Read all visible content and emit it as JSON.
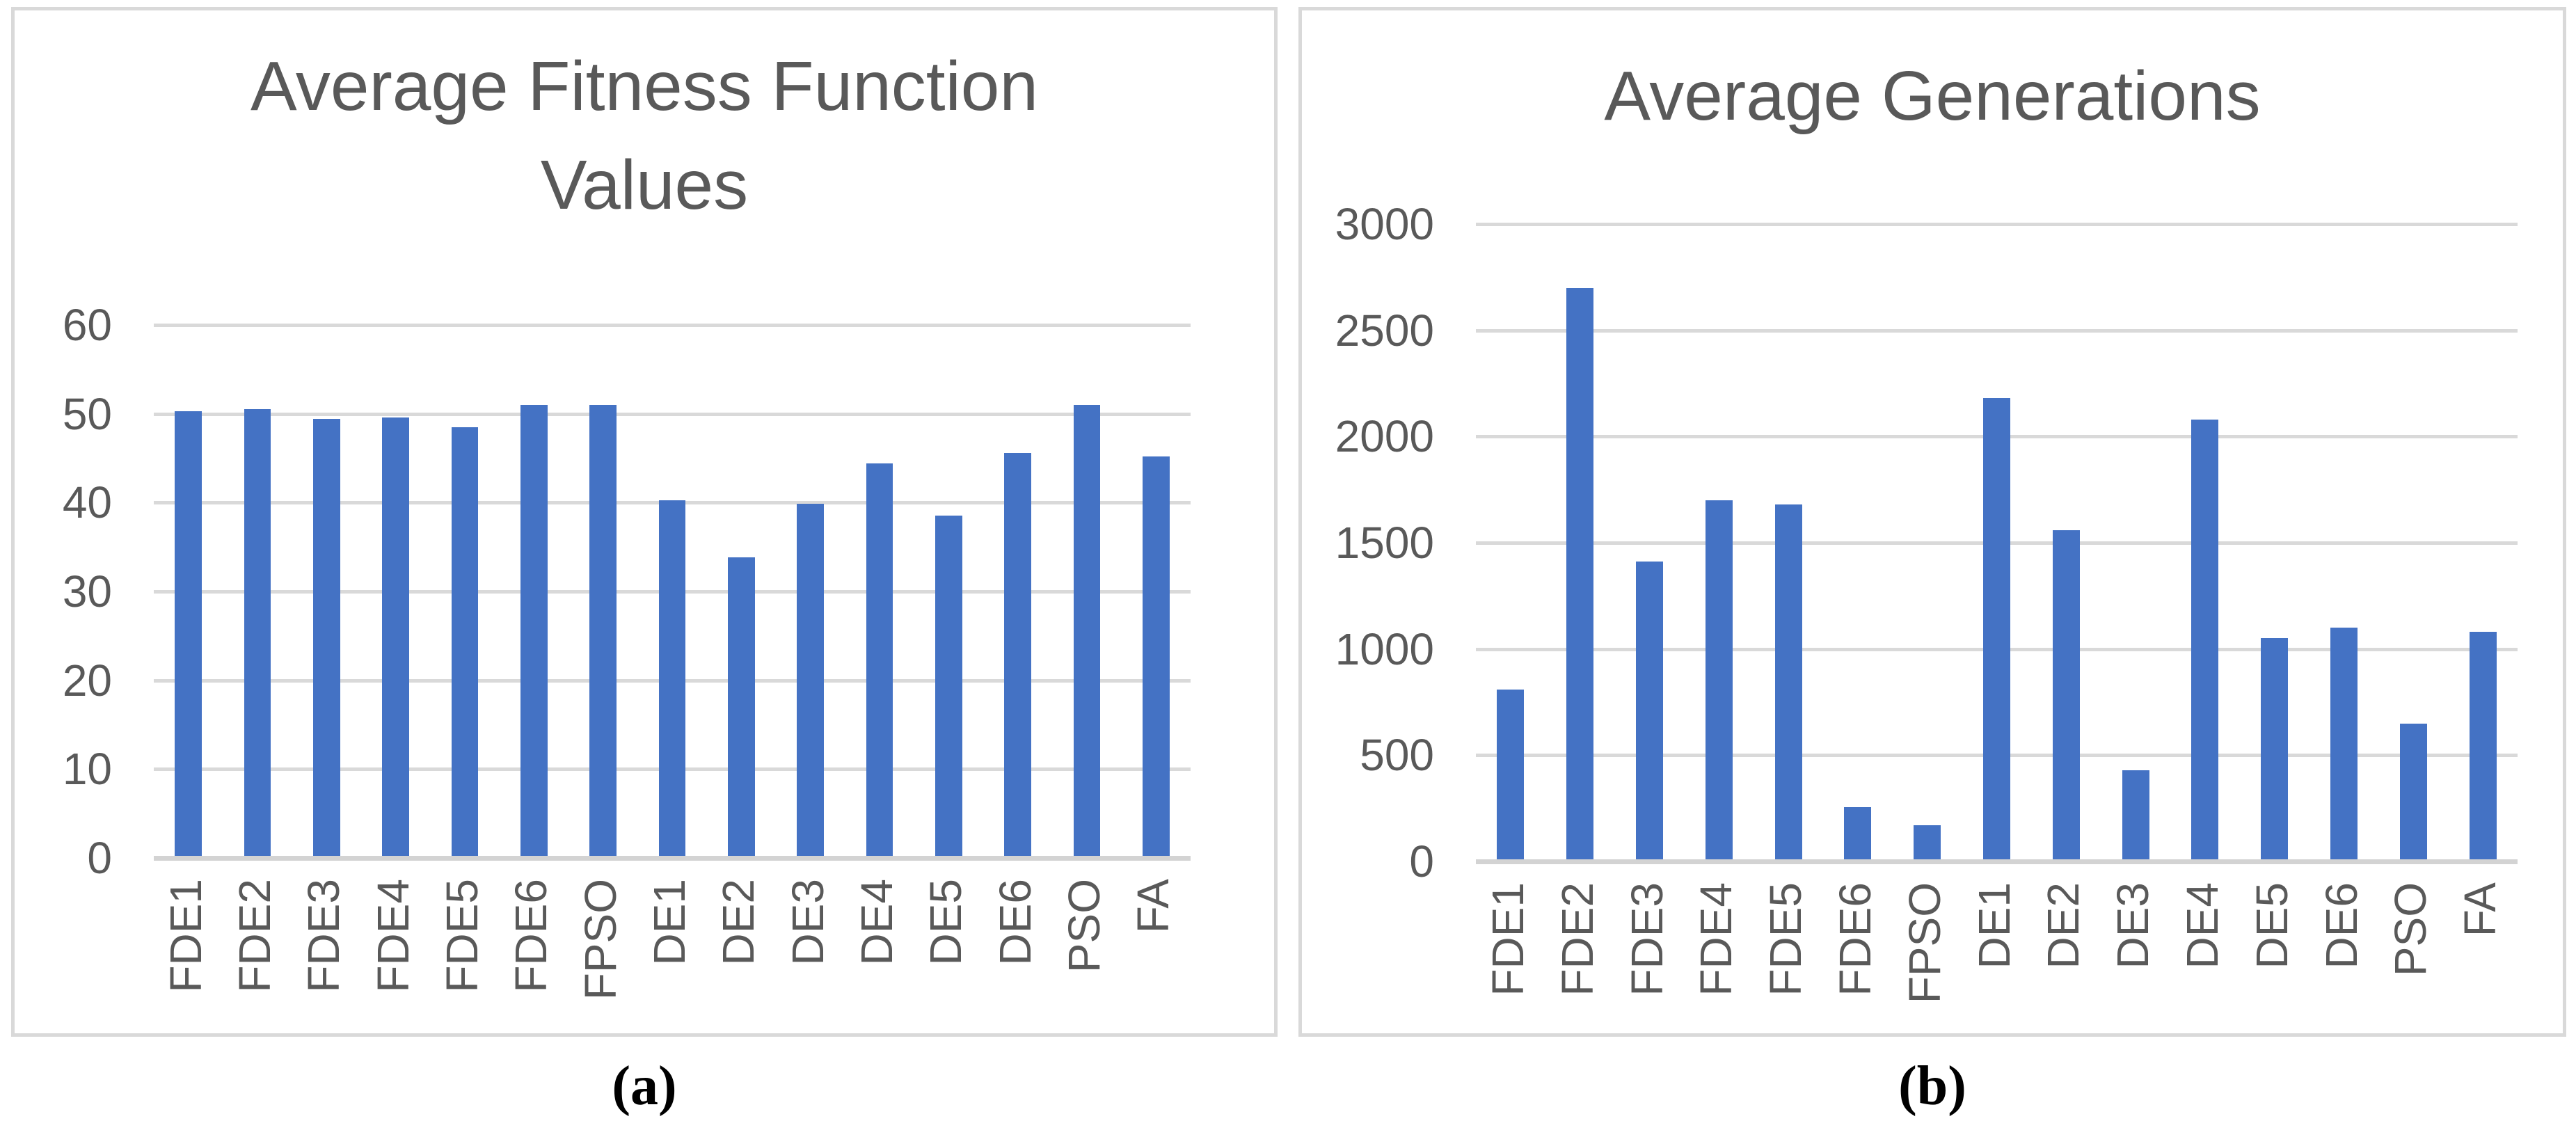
{
  "chart_data": [
    {
      "type": "bar",
      "panel": "a",
      "title": "Average Fitness Function Values",
      "caption": "(a)",
      "categories": [
        "FDE1",
        "FDE2",
        "FDE3",
        "FDE4",
        "FDE5",
        "FDE6",
        "FPSO",
        "DE1",
        "DE2",
        "DE3",
        "DE4",
        "DE5",
        "DE6",
        "PSO",
        "FA"
      ],
      "values": [
        50.3,
        50.5,
        49.4,
        49.6,
        48.5,
        51,
        51,
        40.3,
        33.8,
        39.9,
        44.4,
        38.5,
        45.6,
        51,
        45.2
      ],
      "title_lines": [
        "Average Fitness Function",
        "Values"
      ],
      "xlabel": "",
      "ylabel": "",
      "ylim": [
        0,
        60
      ],
      "yticks": [
        0,
        10,
        20,
        30,
        40,
        50,
        60
      ],
      "grid": true,
      "legend": "none",
      "bar_color": "#4472C4"
    },
    {
      "type": "bar",
      "panel": "b",
      "title": "Average Generations",
      "caption": "(b)",
      "categories": [
        "FDE1",
        "FDE2",
        "FDE3",
        "FDE4",
        "FDE5",
        "FDE6",
        "FPSO",
        "DE1",
        "DE2",
        "DE3",
        "DE4",
        "DE5",
        "DE6",
        "PSO",
        "FA"
      ],
      "values": [
        810,
        2700,
        1410,
        1700,
        1680,
        255,
        170,
        2180,
        1560,
        430,
        2080,
        1050,
        1100,
        650,
        1080
      ],
      "title_lines": [
        "Average Generations"
      ],
      "xlabel": "",
      "ylabel": "",
      "ylim": [
        0,
        3000
      ],
      "yticks": [
        0,
        500,
        1000,
        1500,
        2000,
        2500,
        3000
      ],
      "grid": true,
      "legend": "none",
      "bar_color": "#4472C4"
    }
  ],
  "colors": {
    "bar": "#4472C4",
    "gridline": "#D9D9D9",
    "axis_line": "#D3D3D3",
    "title_text": "#595959",
    "tick_text": "#595959",
    "panel_border": "#D9D9D9",
    "caption_text": "#000000",
    "background": "#FFFFFF"
  }
}
